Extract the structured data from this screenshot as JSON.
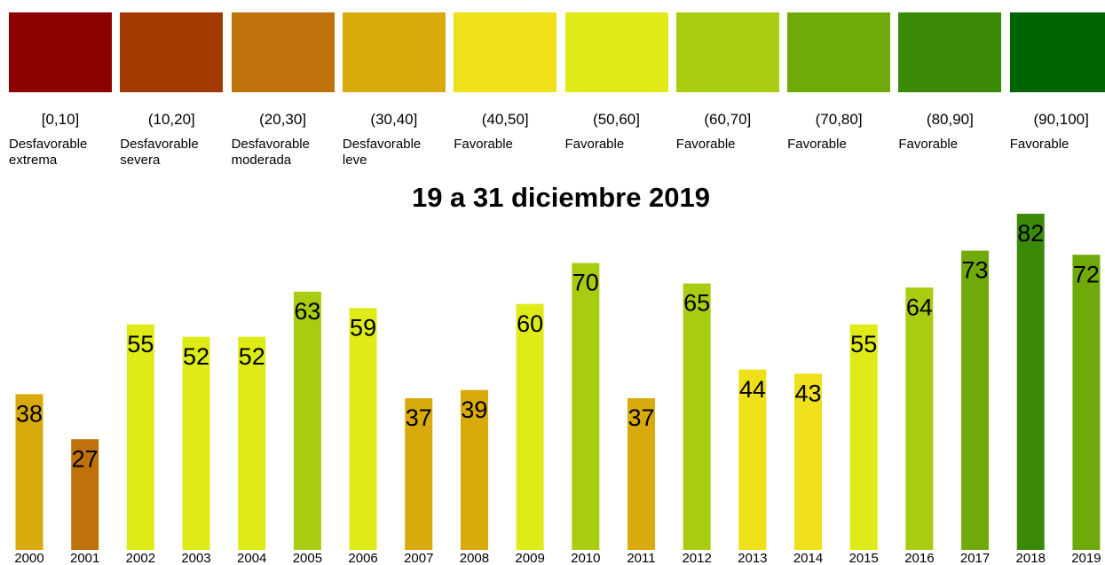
{
  "chart_data": {
    "type": "bar",
    "title": "19 a 31 diciembre 2019",
    "legend": [
      {
        "color": "#8b0000",
        "range": "[0,10]",
        "label": "Desfavorable extrema"
      },
      {
        "color": "#a33a00",
        "range": "(10,20]",
        "label": "Desfavorable severa"
      },
      {
        "color": "#bf720a",
        "range": "(20,30]",
        "label": "Desfavorable moderada"
      },
      {
        "color": "#d9aa0b",
        "range": "(30,40]",
        "label": "Desfavorable leve"
      },
      {
        "color": "#f0e01a",
        "range": "(40,50]",
        "label": "Favorable"
      },
      {
        "color": "#dfeb16",
        "range": "(50,60]",
        "label": "Favorable"
      },
      {
        "color": "#a8cc10",
        "range": "(60,70]",
        "label": "Favorable"
      },
      {
        "color": "#70aa0a",
        "range": "(70,80]",
        "label": "Favorable"
      },
      {
        "color": "#3a8a08",
        "range": "(80,90]",
        "label": "Favorable"
      },
      {
        "color": "#006400",
        "range": "(90,100]",
        "label": "Favorable"
      }
    ],
    "categories": [
      "2000",
      "2001",
      "2002",
      "2003",
      "2004",
      "2005",
      "2006",
      "2007",
      "2008",
      "2009",
      "2010",
      "2011",
      "2012",
      "2013",
      "2014",
      "2015",
      "2016",
      "2017",
      "2018",
      "2019"
    ],
    "values": [
      38,
      27,
      55,
      52,
      52,
      63,
      59,
      37,
      39,
      60,
      70,
      37,
      65,
      44,
      43,
      55,
      64,
      73,
      82,
      72
    ],
    "colors": [
      "#d9aa0b",
      "#bf720a",
      "#dfeb16",
      "#dfeb16",
      "#dfeb16",
      "#a8cc10",
      "#dfeb16",
      "#d9aa0b",
      "#d9aa0b",
      "#dfeb16",
      "#a8cc10",
      "#d9aa0b",
      "#a8cc10",
      "#f0e01a",
      "#f0e01a",
      "#dfeb16",
      "#a8cc10",
      "#70aa0a",
      "#3a8a08",
      "#70aa0a"
    ],
    "ylim": [
      0,
      82
    ]
  }
}
